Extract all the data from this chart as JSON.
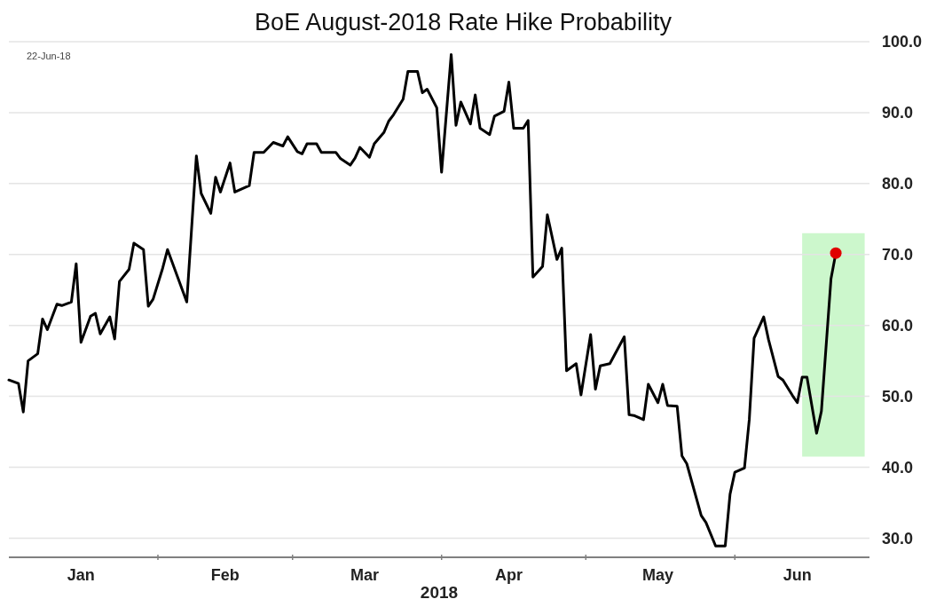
{
  "chart_data": {
    "type": "line",
    "title": "BoE August-2018 Rate Hike Probability",
    "xlabel": "2018",
    "annotations": [
      "22-Jun-18"
    ],
    "xlim": [
      "2018-01-01",
      "2018-06-29"
    ],
    "xticks": [
      {
        "value": "2018-01-16",
        "label": "Jan"
      },
      {
        "value": "2018-02-01",
        "label": null
      },
      {
        "value": "2018-02-15",
        "label": "Feb"
      },
      {
        "value": "2018-03-01",
        "label": null
      },
      {
        "value": "2018-03-16",
        "label": "Mar"
      },
      {
        "value": "2018-04-01",
        "label": null
      },
      {
        "value": "2018-04-15",
        "label": "Apr"
      },
      {
        "value": "2018-05-01",
        "label": null
      },
      {
        "value": "2018-05-16",
        "label": "May"
      },
      {
        "value": "2018-06-01",
        "label": null
      },
      {
        "value": "2018-06-14",
        "label": "Jun"
      }
    ],
    "ylim": [
      27.3,
      100
    ],
    "yticks": [
      {
        "value": 30,
        "label": "30.0"
      },
      {
        "value": 40,
        "label": "40.0"
      },
      {
        "value": 50,
        "label": "50.0"
      },
      {
        "value": 60,
        "label": "60.0"
      },
      {
        "value": 70,
        "label": "70.0"
      },
      {
        "value": 80,
        "label": "80.0"
      },
      {
        "value": 90,
        "label": "90.0"
      },
      {
        "value": 100,
        "label": "100.0"
      }
    ],
    "grid": "y",
    "bands": [
      {
        "axis": "x",
        "from": "2018-06-15",
        "to": "2018-06-28",
        "color": "#ccf7cc"
      }
    ],
    "series": [
      {
        "color": "#000000",
        "marker": "none",
        "x": [
          "2018-01-01",
          "2018-01-03",
          "2018-01-04",
          "2018-01-05",
          "2018-01-07",
          "2018-01-08",
          "2018-01-09",
          "2018-01-11",
          "2018-01-12",
          "2018-01-14",
          "2018-01-15",
          "2018-01-16",
          "2018-01-18",
          "2018-01-19",
          "2018-01-20",
          "2018-01-22",
          "2018-01-23",
          "2018-01-24",
          "2018-01-26",
          "2018-01-27",
          "2018-01-29",
          "2018-01-30",
          "2018-01-31",
          "2018-02-02",
          "2018-02-03",
          "2018-02-05",
          "2018-02-07",
          "2018-02-09",
          "2018-02-10",
          "2018-02-12",
          "2018-02-13",
          "2018-02-14",
          "2018-02-16",
          "2018-02-17",
          "2018-02-20",
          "2018-02-21",
          "2018-02-23",
          "2018-02-25",
          "2018-02-27",
          "2018-02-28",
          "2018-03-02",
          "2018-03-03",
          "2018-03-04",
          "2018-03-06",
          "2018-03-07",
          "2018-03-10",
          "2018-03-11",
          "2018-03-13",
          "2018-03-14",
          "2018-03-15",
          "2018-03-17",
          "2018-03-18",
          "2018-03-20",
          "2018-03-21",
          "2018-03-22",
          "2018-03-24",
          "2018-03-25",
          "2018-03-27",
          "2018-03-28",
          "2018-03-29",
          "2018-03-31",
          "2018-04-01",
          "2018-04-03",
          "2018-04-04",
          "2018-04-05",
          "2018-04-07",
          "2018-04-08",
          "2018-04-09",
          "2018-04-11",
          "2018-04-12",
          "2018-04-14",
          "2018-04-15",
          "2018-04-16",
          "2018-04-18",
          "2018-04-19",
          "2018-04-20",
          "2018-04-22",
          "2018-04-23",
          "2018-04-25",
          "2018-04-26",
          "2018-04-27",
          "2018-04-29",
          "2018-04-30",
          "2018-05-02",
          "2018-05-03",
          "2018-05-04",
          "2018-05-06",
          "2018-05-09",
          "2018-05-10",
          "2018-05-11",
          "2018-05-13",
          "2018-05-14",
          "2018-05-16",
          "2018-05-17",
          "2018-05-18",
          "2018-05-20",
          "2018-05-21",
          "2018-05-22",
          "2018-05-25",
          "2018-05-26",
          "2018-05-28",
          "2018-05-30",
          "2018-05-31",
          "2018-06-01",
          "2018-06-03",
          "2018-06-04",
          "2018-06-05",
          "2018-06-07",
          "2018-06-08",
          "2018-06-10",
          "2018-06-11",
          "2018-06-13",
          "2018-06-14",
          "2018-06-15",
          "2018-06-16",
          "2018-06-18",
          "2018-06-19",
          "2018-06-21",
          "2018-06-22"
        ],
        "values": [
          52.3,
          51.8,
          47.8,
          55,
          56,
          60.9,
          59.4,
          63,
          62.8,
          63.3,
          68.7,
          57.6,
          61.3,
          61.7,
          58.8,
          61.2,
          58.1,
          66.2,
          67.9,
          71.6,
          70.7,
          62.7,
          63.7,
          68.1,
          70.7,
          67,
          63.3,
          83.9,
          78.6,
          75.8,
          80.9,
          78.8,
          82.9,
          78.8,
          79.7,
          84.4,
          84.4,
          85.8,
          85.3,
          86.6,
          84.5,
          84.2,
          85.6,
          85.6,
          84.4,
          84.4,
          83.5,
          82.6,
          83.6,
          85.1,
          83.7,
          85.6,
          87.2,
          88.8,
          89.7,
          91.9,
          95.8,
          95.8,
          92.8,
          93.3,
          90.7,
          81.6,
          98.2,
          88.2,
          91.5,
          88.4,
          92.5,
          87.8,
          86.9,
          89.5,
          90.2,
          94.3,
          87.8,
          87.8,
          88.9,
          66.8,
          68.3,
          75.6,
          69.3,
          70.9,
          53.6,
          54.6,
          50.2,
          58.7,
          51,
          54.3,
          54.6,
          58.4,
          47.4,
          47.3,
          46.7,
          51.7,
          49.1,
          51.7,
          48.7,
          48.6,
          41.6,
          40.5,
          33.2,
          32.2,
          28.9,
          28.9,
          36.2,
          39.3,
          39.9,
          46.7,
          58.2,
          61.2,
          58,
          52.8,
          52.3,
          50.1,
          49.1,
          52.7,
          52.7,
          44.8,
          47.9,
          66.6,
          70.2
        ]
      },
      {
        "type": "scatter",
        "color": "#e00000",
        "marker": "circle",
        "x": [
          "2018-06-22"
        ],
        "values": [
          70.2
        ]
      }
    ]
  }
}
